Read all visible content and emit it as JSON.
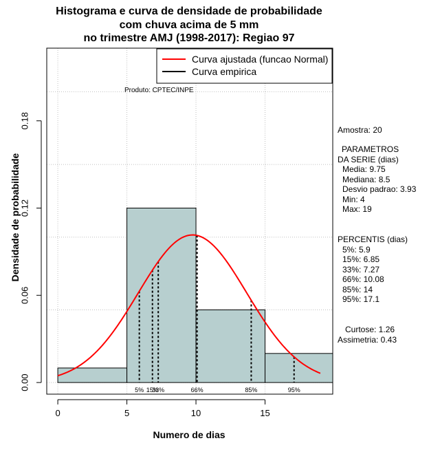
{
  "title_lines": [
    "Histograma e curva de densidade de probabilidade",
    "com chuva acima de 5 mm",
    "no trimestre AMJ (1998-2017): Regiao 97"
  ],
  "product": "Produto: CPTEC/INPE",
  "legend": [
    {
      "label": "Curva ajustada (funcao Normal)",
      "color": "#ff0000"
    },
    {
      "label": "Curva empirica",
      "color": "#000000"
    }
  ],
  "side_panel": {
    "sample": "Amostra: 20",
    "params_title_1": "PARAMETROS",
    "params_title_2": "DA SERIE (dias)",
    "params": [
      "Media: 9.75",
      "Mediana: 8.5",
      "Desvio padrao: 3.93",
      "Min: 4",
      "Max: 19"
    ],
    "perc_title": "PERCENTIS (dias)",
    "percentiles": [
      "5%: 5.9",
      "15%: 6.85",
      "33%: 7.27",
      "66%: 10.08",
      "85%: 14",
      "95%: 17.1"
    ],
    "kurtosis": "Curtose: 1.26",
    "skewness": "Assimetria: 0.43"
  },
  "chart_data": {
    "type": "histogram",
    "title": "Histograma e curva de densidade de probabilidade com chuva acima de 5 mm no trimestre AMJ (1998-2017): Regiao 97",
    "xlabel": "Numero de dias",
    "ylabel": "Densidade de probabilidade",
    "xlim": [
      -0.8,
      19.9
    ],
    "ylim": [
      -0.008,
      0.23
    ],
    "x_ticks": [
      0,
      5,
      10,
      15
    ],
    "y_ticks": [
      0.0,
      0.06,
      0.12,
      0.18
    ],
    "y_tick_labels": [
      "0.00",
      "0.06",
      "0.12",
      "0.18"
    ],
    "bars": [
      {
        "x0": 0,
        "x1": 5,
        "density": 0.01
      },
      {
        "x0": 5,
        "x1": 10,
        "density": 0.12
      },
      {
        "x0": 10,
        "x1": 15,
        "density": 0.05
      },
      {
        "x0": 15,
        "x1": 20,
        "density": 0.02
      }
    ],
    "bar_color": "#b7cfcf",
    "normal_fit": {
      "mean": 9.75,
      "sd": 3.93,
      "x_from": 0,
      "x_to": 19,
      "color": "#ff0000"
    },
    "percentile_lines": [
      {
        "label": "5%",
        "x": 5.9
      },
      {
        "label": "15%",
        "x": 6.85
      },
      {
        "label": "33%",
        "x": 7.27
      },
      {
        "label": "66%",
        "x": 10.08
      },
      {
        "label": "85%",
        "x": 14
      },
      {
        "label": "95%",
        "x": 17.1
      }
    ],
    "grid": true
  }
}
